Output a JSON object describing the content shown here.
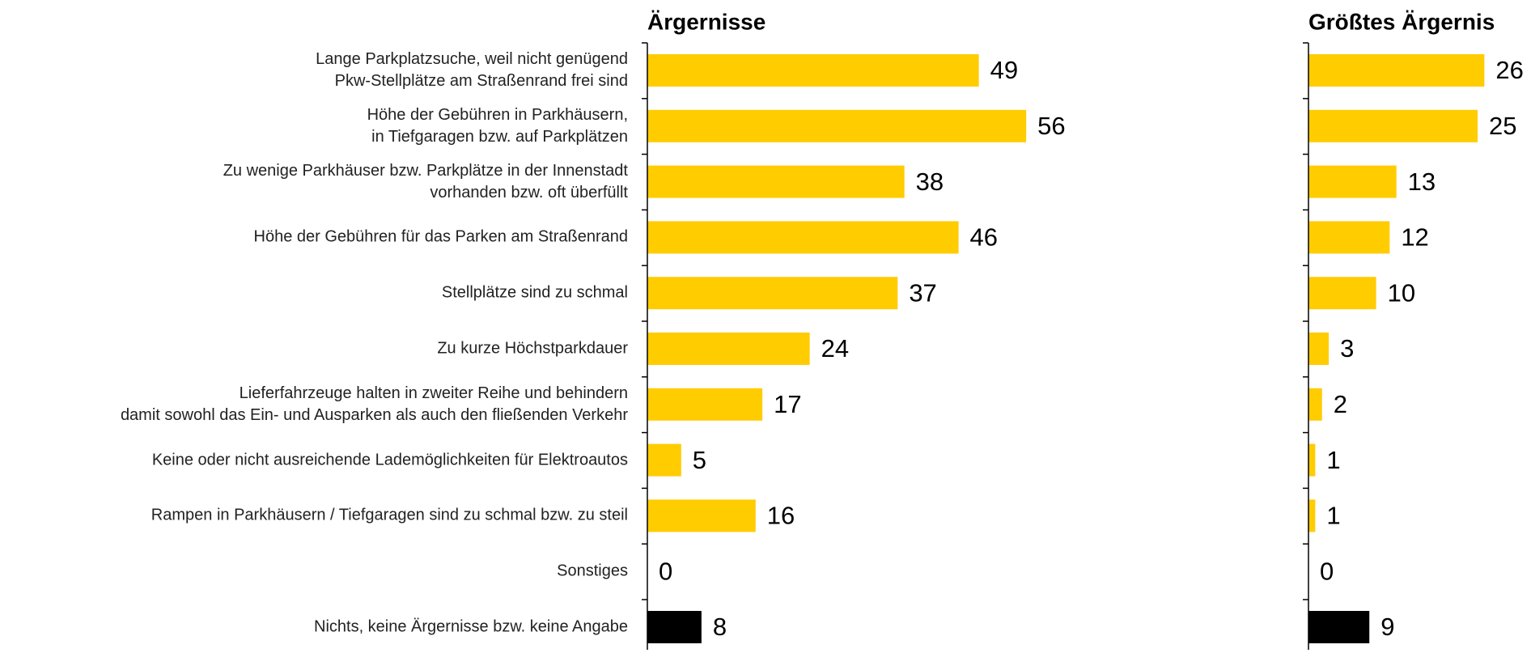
{
  "chart_data": [
    {
      "type": "barh",
      "title": "Ärgernisse",
      "categories": [
        "Lange Parkplatzsuche, weil nicht genügend\nPkw-Stellplätze am Straßenrand frei sind",
        "Höhe der Gebühren in Parkhäusern,\nin Tiefgaragen bzw. auf Parkplätzen",
        "Zu wenige Parkhäuser bzw. Parkplätze in der Innenstadt\nvorhanden bzw. oft überfüllt",
        "Höhe der Gebühren für das Parken am Straßenrand",
        "Stellplätze sind zu schmal",
        "Zu kurze Höchstparkdauer",
        "Lieferfahrzeuge halten in zweiter Reihe und behindern\ndamit sowohl das Ein- und Ausparken als auch den fließenden Verkehr",
        "Keine oder nicht ausreichende Lademöglichkeiten für Elektroautos",
        "Rampen in Parkhäusern / Tiefgaragen sind zu schmal bzw. zu steil",
        "Sonstiges",
        "Nichts, keine Ärgernisse bzw. keine Angabe"
      ],
      "values": [
        49,
        56,
        38,
        46,
        37,
        24,
        17,
        5,
        16,
        0,
        8
      ],
      "colors": [
        "#ffcc00",
        "#ffcc00",
        "#ffcc00",
        "#ffcc00",
        "#ffcc00",
        "#ffcc00",
        "#ffcc00",
        "#ffcc00",
        "#ffcc00",
        "#ffcc00",
        "#000000"
      ],
      "xlim": [
        0,
        60
      ]
    },
    {
      "type": "barh",
      "title": "Größtes Ärgernis",
      "values": [
        26,
        25,
        13,
        12,
        10,
        3,
        2,
        1,
        1,
        0,
        9
      ],
      "colors": [
        "#ffcc00",
        "#ffcc00",
        "#ffcc00",
        "#ffcc00",
        "#ffcc00",
        "#ffcc00",
        "#ffcc00",
        "#ffcc00",
        "#ffcc00",
        "#ffcc00",
        "#000000"
      ],
      "xlim": [
        0,
        30
      ]
    }
  ]
}
